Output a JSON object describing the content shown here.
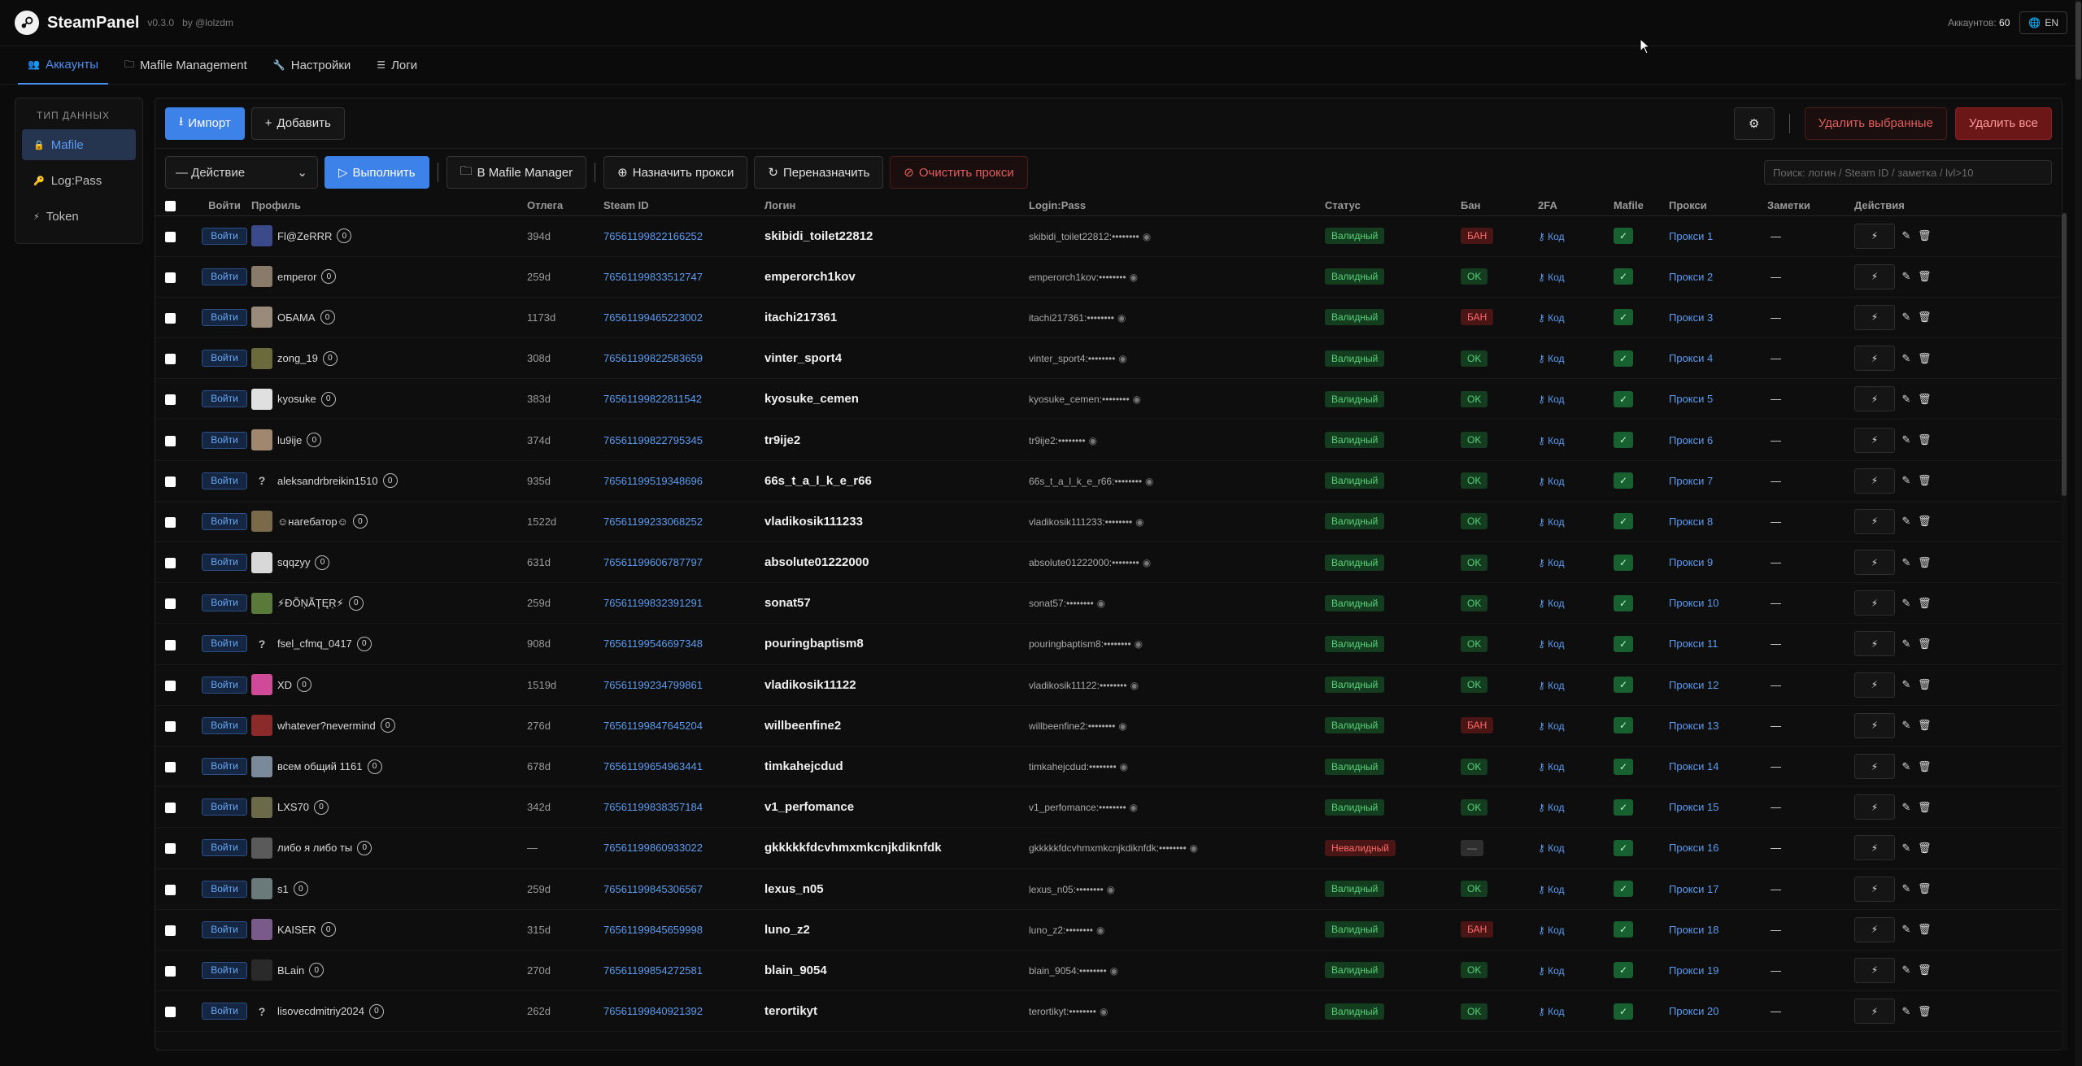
{
  "header": {
    "brand": "SteamPanel",
    "version": "v0.3.0",
    "byline": "by @lolzdm",
    "accounts_label": "Аккаунтов:",
    "accounts_count": "60",
    "lang": "EN"
  },
  "tabs": [
    {
      "label": "Аккаунты",
      "icon": "users-icon",
      "active": true
    },
    {
      "label": "Mafile Management",
      "icon": "folder-icon",
      "active": false
    },
    {
      "label": "Настройки",
      "icon": "wrench-icon",
      "active": false
    },
    {
      "label": "Логи",
      "icon": "logs-icon",
      "active": false
    }
  ],
  "sidebar": {
    "title": "Тип данных",
    "items": [
      {
        "label": "Mafile",
        "icon": "lock-icon",
        "active": true
      },
      {
        "label": "Log:Pass",
        "icon": "key-icon",
        "active": false
      },
      {
        "label": "Token",
        "icon": "lightning-icon",
        "active": false
      }
    ]
  },
  "toolbar": {
    "import": "Импорт",
    "add": "Добавить",
    "delete_selected": "Удалить выбранные",
    "delete_all": "Удалить все",
    "action_select": "— Действие",
    "execute": "Выполнить",
    "to_mafile": "В Mafile Manager",
    "assign_proxy": "Назначить прокси",
    "reassign": "Переназначить",
    "clear_proxy": "Очистить прокси",
    "search_placeholder": "Поиск: логин / Steam ID / заметка / lvl>10"
  },
  "table": {
    "columns": [
      "Войти",
      "Профиль",
      "Отлега",
      "Steam ID",
      "Логин",
      "Login:Pass",
      "Статус",
      "Бан",
      "2FA",
      "Mafile",
      "Прокси",
      "Заметки",
      "Действия"
    ],
    "login_btn": "Войти",
    "code_label": "Код",
    "mafile_mark": "✓",
    "notes_empty": "—",
    "rows": [
      {
        "profile": "Fl@ZeRRR",
        "lvl": "0",
        "otlega": "394d",
        "steamid": "76561199822166252",
        "login": "skibidi_toilet22812",
        "lp": "skibidi_toilet22812:••••••••",
        "status": "Валидный",
        "ban": "БАН",
        "proxy": "Прокси 1",
        "avatar_color": "#3b4a8a"
      },
      {
        "profile": "emperor",
        "lvl": "0",
        "otlega": "259d",
        "steamid": "76561199833512747",
        "login": "emperorch1kov",
        "lp": "emperorch1kov:••••••••",
        "status": "Валидный",
        "ban": "OK",
        "proxy": "Прокси 2",
        "avatar_color": "#8a7a6a"
      },
      {
        "profile": "ОБАМА",
        "lvl": "0",
        "otlega": "1173d",
        "steamid": "76561199465223002",
        "login": "itachi217361",
        "lp": "itachi217361:••••••••",
        "status": "Валидный",
        "ban": "БАН",
        "proxy": "Прокси 3",
        "avatar_color": "#9a8a7a"
      },
      {
        "profile": "zong_19",
        "lvl": "0",
        "otlega": "308d",
        "steamid": "76561199822583659",
        "login": "vinter_sport4",
        "lp": "vinter_sport4:••••••••",
        "status": "Валидный",
        "ban": "OK",
        "proxy": "Прокси 4",
        "avatar_color": "#6a6a3a"
      },
      {
        "profile": "kyosuke",
        "lvl": "0",
        "otlega": "383d",
        "steamid": "76561199822811542",
        "login": "kyosuke_cemen",
        "lp": "kyosuke_cemen:••••••••",
        "status": "Валидный",
        "ban": "OK",
        "proxy": "Прокси 5",
        "avatar_color": "#e0e0e0"
      },
      {
        "profile": "lu9ije",
        "lvl": "0",
        "otlega": "374d",
        "steamid": "76561199822795345",
        "login": "tr9ije2",
        "lp": "tr9ije2:••••••••",
        "status": "Валидный",
        "ban": "OK",
        "proxy": "Прокси 6",
        "avatar_color": "#a08870"
      },
      {
        "profile": "aleksandrbreikin1510",
        "lvl": "0",
        "otlega": "935d",
        "steamid": "76561199519348696",
        "login": "66s_t_a_l_k_e_r66",
        "lp": "66s_t_a_l_k_e_r66:••••••••",
        "status": "Валидный",
        "ban": "OK",
        "proxy": "Прокси 7",
        "avatar_color": "?"
      },
      {
        "profile": "☺нагебатор☺",
        "lvl": "0",
        "otlega": "1522d",
        "steamid": "76561199233068252",
        "login": "vladikosik111233",
        "lp": "vladikosik111233:••••••••",
        "status": "Валидный",
        "ban": "OK",
        "proxy": "Прокси 8",
        "avatar_color": "#7a6a4a"
      },
      {
        "profile": "sqqzyy",
        "lvl": "0",
        "otlega": "631d",
        "steamid": "76561199606787797",
        "login": "absolute01222000",
        "lp": "absolute01222000:••••••••",
        "status": "Валидный",
        "ban": "OK",
        "proxy": "Прокси 9",
        "avatar_color": "#d8d8d8"
      },
      {
        "profile": "⚡ĐÕŅÃŢĘŖ⚡",
        "lvl": "0",
        "otlega": "259d",
        "steamid": "76561199832391291",
        "login": "sonat57",
        "lp": "sonat57:••••••••",
        "status": "Валидный",
        "ban": "OK",
        "proxy": "Прокси 10",
        "avatar_color": "#5a7a3a"
      },
      {
        "profile": "fsel_cfmq_0417",
        "lvl": "0",
        "otlega": "908d",
        "steamid": "76561199546697348",
        "login": "pouringbaptism8",
        "lp": "pouringbaptism8:••••••••",
        "status": "Валидный",
        "ban": "OK",
        "proxy": "Прокси 11",
        "avatar_color": "?"
      },
      {
        "profile": "XD",
        "lvl": "0",
        "otlega": "1519d",
        "steamid": "76561199234799861",
        "login": "vladikosik11122",
        "lp": "vladikosik11122:••••••••",
        "status": "Валидный",
        "ban": "OK",
        "proxy": "Прокси 12",
        "avatar_color": "#d04a9a"
      },
      {
        "profile": "whatever?nevermind",
        "lvl": "0",
        "otlega": "276d",
        "steamid": "76561199847645204",
        "login": "willbeenfine2",
        "lp": "willbeenfine2:••••••••",
        "status": "Валидный",
        "ban": "БАН",
        "proxy": "Прокси 13",
        "avatar_color": "#8a2a2a"
      },
      {
        "profile": "всем общий 1161",
        "lvl": "0",
        "otlega": "678d",
        "steamid": "76561199654963441",
        "login": "timkahejcdud",
        "lp": "timkahejcdud:••••••••",
        "status": "Валидный",
        "ban": "OK",
        "proxy": "Прокси 14",
        "avatar_color": "#7a8a9a"
      },
      {
        "profile": "LXS70",
        "lvl": "0",
        "otlega": "342d",
        "steamid": "76561199838357184",
        "login": "v1_perfomance",
        "lp": "v1_perfomance:••••••••",
        "status": "Валидный",
        "ban": "OK",
        "proxy": "Прокси 15",
        "avatar_color": "#6a6a4a"
      },
      {
        "profile": "либо я либо ты",
        "lvl": "0",
        "otlega": "—",
        "steamid": "76561199860933022",
        "login": "gkkkkkfdcvhmxmkcnjkdiknfdk",
        "lp": "gkkkkkfdcvhmxmkcnjkdiknfdk:••••••••",
        "status": "Невалидный",
        "ban": "—",
        "proxy": "Прокси 16",
        "avatar_color": "#5a5a5a"
      },
      {
        "profile": "s1",
        "lvl": "0",
        "otlega": "259d",
        "steamid": "76561199845306567",
        "login": "lexus_n05",
        "lp": "lexus_n05:••••••••",
        "status": "Валидный",
        "ban": "OK",
        "proxy": "Прокси 17",
        "avatar_color": "#6a7a7a"
      },
      {
        "profile": "KAISER",
        "lvl": "0",
        "otlega": "315d",
        "steamid": "76561199845659998",
        "login": "luno_z2",
        "lp": "luno_z2:••••••••",
        "status": "Валидный",
        "ban": "БАН",
        "proxy": "Прокси 18",
        "avatar_color": "#7a5a8a"
      },
      {
        "profile": "BLain",
        "lvl": "0",
        "otlega": "270d",
        "steamid": "76561199854272581",
        "login": "blain_9054",
        "lp": "blain_9054:••••••••",
        "status": "Валидный",
        "ban": "OK",
        "proxy": "Прокси 19",
        "avatar_color": "#2a2a2a"
      },
      {
        "profile": "lisovecdmitriy2024",
        "lvl": "0",
        "otlega": "262d",
        "steamid": "76561199840921392",
        "login": "terortikyt",
        "lp": "terortikyt:••••••••",
        "status": "Валидный",
        "ban": "OK",
        "proxy": "Прокси 20",
        "avatar_color": "?"
      }
    ]
  }
}
